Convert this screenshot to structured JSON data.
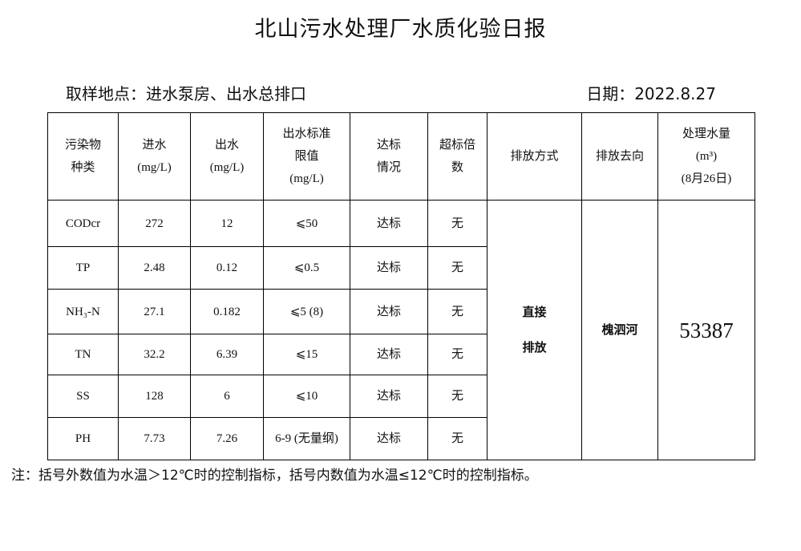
{
  "header": {
    "title": "北山污水处理厂水质化验日报",
    "location": "取样地点：进水泵房、出水总排口",
    "date": "日期：2022.8.27"
  },
  "table": {
    "headers": [
      [
        "污染物",
        "种类"
      ],
      [
        "进水",
        "(mg/L)"
      ],
      [
        "出水",
        "(mg/L)"
      ],
      [
        "出水标准",
        "限值",
        "(mg/L)"
      ],
      [
        "达标",
        "情况"
      ],
      [
        "超标倍",
        "数"
      ],
      [
        "排放方式"
      ],
      [
        "排放去向"
      ],
      [
        "处理水量",
        "(m³)",
        "(8月26日)"
      ]
    ],
    "rows": [
      [
        "CODcr",
        "272",
        "12",
        "⩽50",
        "达标",
        "无"
      ],
      [
        "TP",
        "2.48",
        "0.12",
        "⩽0.5",
        "达标",
        "无"
      ],
      [
        "NH₃-N",
        "27.1",
        "0.182",
        "⩽5 (8)",
        "达标",
        "无"
      ],
      [
        "TN",
        "32.2",
        "6.39",
        "⩽15",
        "达标",
        "无"
      ],
      [
        "SS",
        "128",
        "6",
        "⩽10",
        "达标",
        "无"
      ],
      [
        "PH",
        "7.73",
        "7.26",
        "6-9 (无量纲)",
        "达标",
        "无"
      ]
    ],
    "method": [
      "直接",
      "排放"
    ],
    "destination": "槐泗河",
    "volume": "53387"
  },
  "note": "注：括号外数值为水温＞12℃时的控制指标，括号内数值为水温≤12℃时的控制指标。"
}
